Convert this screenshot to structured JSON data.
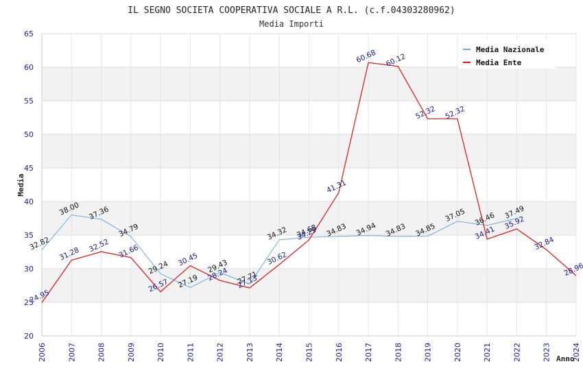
{
  "chart_data": {
    "type": "line",
    "title": "IL SEGNO SOCIETA COOPERATIVA SOCIALE A R.L. (c.f.04303280962)",
    "subtitle": "Media Importi",
    "xlabel": "Anno",
    "ylabel": "Media",
    "ylim": [
      20,
      65
    ],
    "yticks": [
      "20",
      "25",
      "30",
      "35",
      "40",
      "45",
      "50",
      "55",
      "60",
      "65"
    ],
    "categories": [
      "2006",
      "2007",
      "2008",
      "2009",
      "2010",
      "2011",
      "2012",
      "2013",
      "2014",
      "2015",
      "2016",
      "2017",
      "2018",
      "2019",
      "2020",
      "2021",
      "2022",
      "2023",
      "2024"
    ],
    "legend_position": "top-right",
    "grid": true,
    "series": [
      {
        "name": "Media Nazionale",
        "color": "#6aa8e0",
        "label_color": "#111111",
        "values": [
          32.82,
          38.0,
          37.36,
          34.79,
          29.24,
          27.19,
          29.43,
          27.71,
          34.32,
          34.68,
          34.83,
          34.94,
          34.83,
          34.85,
          37.05,
          36.46,
          37.49,
          null,
          null
        ],
        "labels": [
          "32.82",
          "38.00",
          "37.36",
          "34.79",
          "29.24",
          "27.19",
          "29.43",
          "27.71",
          "34.32",
          "34.68",
          "34.83",
          "34.94",
          "34.83",
          "34.85",
          "37.05",
          "36.46",
          "37.49",
          "",
          ""
        ]
      },
      {
        "name": "Media Ente",
        "color": "#e01010",
        "label_color": "#1a1a8c",
        "values": [
          24.95,
          31.28,
          32.52,
          31.66,
          26.57,
          30.45,
          28.24,
          27.13,
          30.62,
          34.29,
          41.31,
          60.68,
          60.12,
          52.32,
          52.32,
          34.41,
          35.92,
          32.84,
          28.96
        ],
        "labels": [
          "24.95",
          "31.28",
          "32.52",
          "31.66",
          "26.57",
          "30.45",
          "28.24",
          "27.13",
          "30.62",
          "34.29",
          "41.31",
          "60.68",
          "60.12",
          "52.32",
          "52.32",
          "34.41",
          "35.92",
          "32.84",
          "28.96"
        ]
      }
    ]
  }
}
